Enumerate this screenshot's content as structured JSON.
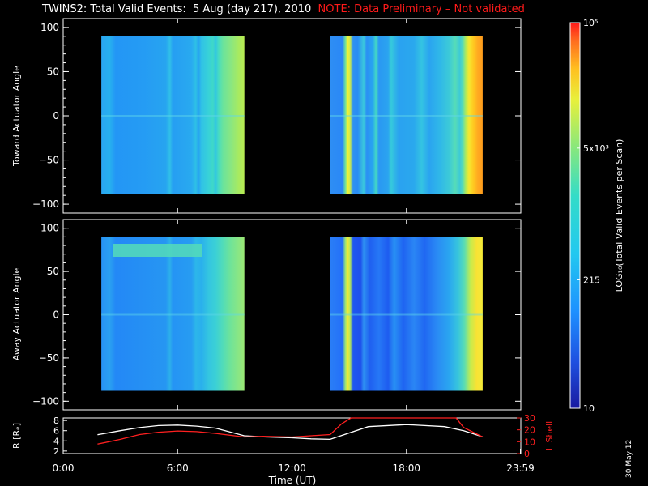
{
  "title": {
    "main": "TWINS2: Total Valid Events:  5 Aug (day 217), 2010",
    "note": "NOTE: Data Preliminary – Not validated"
  },
  "stamp": "30 May 12",
  "colors": {
    "note": "#ff1a1a",
    "lshell": "#ff2020",
    "radius": "#ffffff",
    "background": "#000000"
  },
  "chart_data": [
    {
      "type": "heatmap",
      "ylabel": "Toward Actuator Angle",
      "ylim": [
        -110,
        110
      ],
      "yticks": [
        "100",
        "50",
        "0",
        "−50",
        "−100"
      ],
      "ytick_values": [
        100,
        50,
        0,
        -50,
        -100
      ],
      "xlim_hours": [
        0,
        24
      ],
      "blocks": [
        {
          "start": "2:00",
          "end": "9:30",
          "angle_range": [
            -88,
            90
          ]
        },
        {
          "start": "14:00",
          "end": "22:00",
          "angle_range": [
            -88,
            90
          ]
        }
      ]
    },
    {
      "type": "heatmap",
      "ylabel": "Away Actuator Angle",
      "ylim": [
        -110,
        110
      ],
      "yticks": [
        "100",
        "50",
        "0",
        "−50",
        "−100"
      ],
      "ytick_values": [
        100,
        50,
        0,
        -50,
        -100
      ],
      "xlim_hours": [
        0,
        24
      ],
      "blocks": [
        {
          "start": "2:00",
          "end": "9:30",
          "angle_range": [
            -88,
            90
          ]
        },
        {
          "start": "14:00",
          "end": "22:00",
          "angle_range": [
            -88,
            90
          ]
        }
      ]
    },
    {
      "type": "line",
      "xlabel": "Time (UT)",
      "xticks": [
        "0:00",
        "6:00",
        "12:00",
        "18:00",
        "23:59"
      ],
      "xtick_hours": [
        0,
        6,
        12,
        18,
        23.98
      ],
      "left_axis": {
        "label": "R [Rₑ]",
        "ylim": [
          1.5,
          8.5
        ],
        "ticks": [
          "8",
          "6",
          "4",
          "2"
        ],
        "tick_values": [
          8,
          6,
          4,
          2
        ]
      },
      "right_axis": {
        "label": "L Shell",
        "ylim": [
          0,
          30
        ],
        "ticks": [
          "30",
          "20",
          "10",
          "0"
        ],
        "tick_values": [
          30,
          20,
          10,
          0
        ]
      },
      "series": [
        {
          "axis": "left",
          "x_hours": [
            1.8,
            3,
            4,
            5,
            6,
            7,
            8,
            9.5,
            10.5,
            12,
            13,
            14,
            16,
            18,
            20,
            21,
            22
          ],
          "values": [
            5.2,
            6.0,
            6.6,
            7.0,
            7.1,
            6.9,
            6.5,
            5.0,
            4.8,
            4.6,
            4.4,
            4.3,
            6.8,
            7.2,
            6.8,
            6.0,
            4.8
          ]
        },
        {
          "axis": "right",
          "x_hours": [
            1.8,
            3,
            4,
            5,
            6,
            7,
            8,
            9.5,
            10.5,
            12,
            13,
            14,
            14.6,
            15.1,
            20.6,
            21,
            22
          ],
          "values": [
            8,
            12,
            16,
            18,
            19,
            18.5,
            17,
            14,
            14.5,
            14,
            15,
            16,
            25,
            31,
            31,
            22,
            14
          ]
        }
      ]
    }
  ],
  "colorbar": {
    "label": "LOG₁₀(Total Valid Events per Scan)",
    "scale": "log",
    "range": [
      10,
      100000
    ],
    "ticks": [
      {
        "text": "10⁵",
        "value": 100000
      },
      {
        "text": "5x10³",
        "value": 5000
      },
      {
        "text": "215",
        "value": 215
      },
      {
        "text": "10",
        "value": 10
      }
    ],
    "colors": [
      "#1a1aa0",
      "#1e50e0",
      "#1e90ff",
      "#22c8f0",
      "#33dcc8",
      "#8be87a",
      "#e8f03a",
      "#ffc020",
      "#ff7020",
      "#ff1a1a"
    ]
  }
}
